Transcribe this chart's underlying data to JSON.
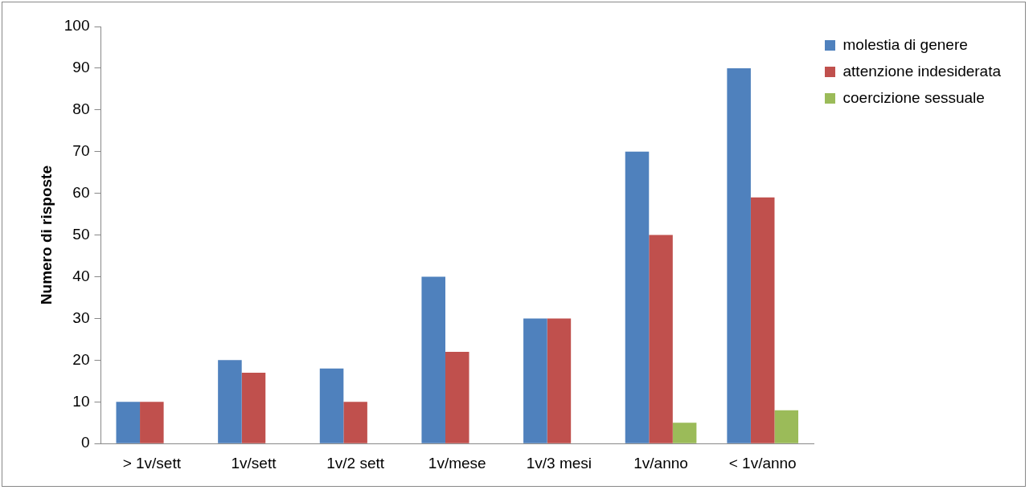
{
  "chart_data": {
    "type": "bar",
    "ylabel": "Numero di risposte",
    "categories": [
      "> 1v/sett",
      "1v/sett",
      "1v/2 sett",
      "1v/mese",
      "1v/3 mesi",
      "1v/anno",
      "< 1v/anno"
    ],
    "series": [
      {
        "name": "molestia di genere",
        "color": "#4f81bd",
        "values": [
          10,
          20,
          18,
          40,
          30,
          70,
          90
        ]
      },
      {
        "name": "attenzione indesiderata",
        "color": "#c0504d",
        "values": [
          10,
          17,
          10,
          22,
          30,
          50,
          59
        ]
      },
      {
        "name": "coercizione sessuale",
        "color": "#9bbb59",
        "values": [
          0,
          0,
          0,
          0,
          0,
          5,
          8
        ]
      }
    ],
    "ylim": [
      0,
      100
    ],
    "yticks": [
      0,
      10,
      20,
      30,
      40,
      50,
      60,
      70,
      80,
      90,
      100
    ],
    "grid": false,
    "legend": "top right"
  }
}
